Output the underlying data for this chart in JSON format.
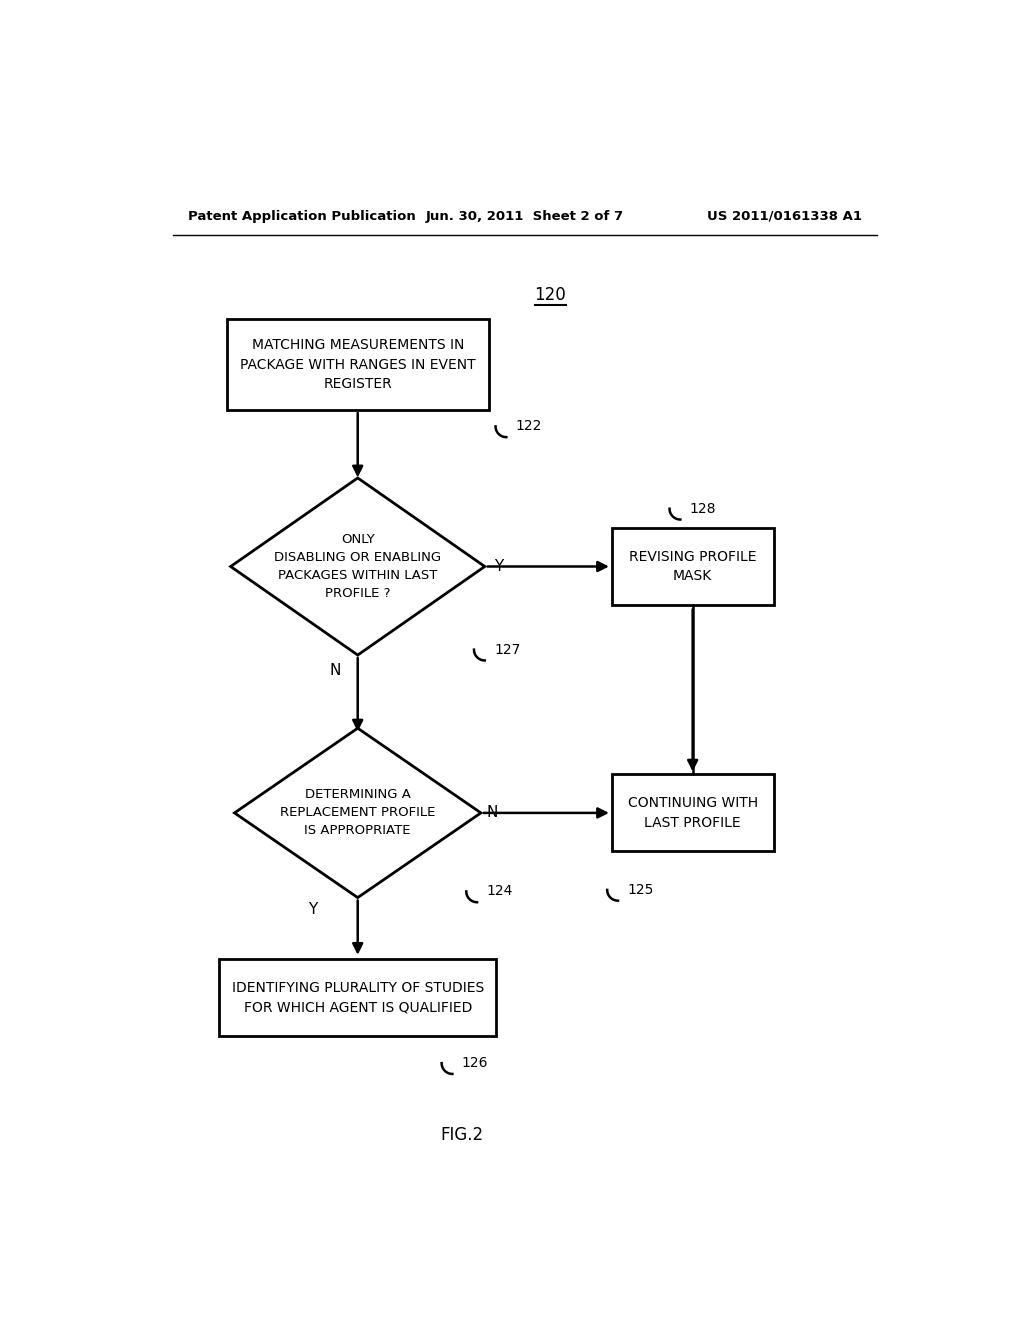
{
  "header_left": "Patent Application Publication",
  "header_mid": "Jun. 30, 2011  Sheet 2 of 7",
  "header_right": "US 2011/0161338 A1",
  "figure_label": "FIG.2",
  "diagram_label": "120",
  "box1_text": "MATCHING MEASUREMENTS IN\nPACKAGE WITH RANGES IN EVENT\nREGISTER",
  "box1_label": "122",
  "diamond1_text": "ONLY\nDISABLING OR ENABLING\nPACKAGES WITHIN LAST\nPROFILE ?",
  "diamond1_label": "127",
  "diamond1_yes_label": "Y",
  "diamond1_no_label": "N",
  "box2_text": "REVISING PROFILE\nMASK",
  "box2_label": "128",
  "diamond2_text": "DETERMINING A\nREPLACEMENT PROFILE\nIS APPROPRIATE",
  "diamond2_label": "124",
  "diamond2_yes_label": "Y",
  "diamond2_no_label": "N",
  "box3_text": "CONTINUING WITH\nLAST PROFILE",
  "box3_label": "125",
  "box4_text": "IDENTIFYING PLURALITY OF STUDIES\nFOR WHICH AGENT IS QUALIFIED",
  "box4_label": "126",
  "bg_color": "#ffffff",
  "line_color": "#000000",
  "text_color": "#000000"
}
